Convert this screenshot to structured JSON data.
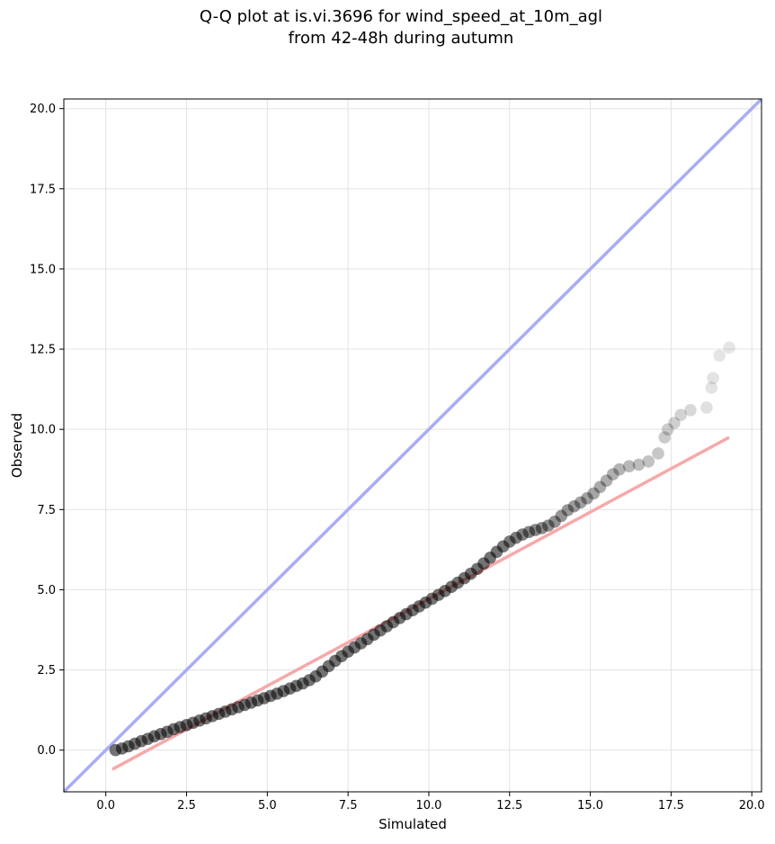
{
  "chart_data": {
    "type": "scatter",
    "title_line1": "Q-Q plot at is.vi.3696 for wind_speed_at_10m_agl",
    "title_line2": "from 42-48h during autumn",
    "xlabel": "Simulated",
    "ylabel": "Observed",
    "xlim": [
      -1.3,
      20.3
    ],
    "ylim": [
      -1.3,
      20.3
    ],
    "x_ticks": [
      0.0,
      2.5,
      5.0,
      7.5,
      10.0,
      12.5,
      15.0,
      17.5,
      20.0
    ],
    "y_ticks": [
      0.0,
      2.5,
      5.0,
      7.5,
      10.0,
      12.5,
      15.0,
      17.5,
      20.0
    ],
    "grid": true,
    "colors": {
      "points": "#000000",
      "identity_line": "#a9acf5",
      "fit_line": "#f6a9a9"
    },
    "identity_line": {
      "x": [
        -1.3,
        20.3
      ],
      "y": [
        -1.3,
        20.3
      ]
    },
    "fit_line": {
      "x": [
        0.2,
        19.3
      ],
      "y": [
        -0.6,
        9.75
      ]
    },
    "series": [
      {
        "points": [
          [
            0.3,
            0.0
          ],
          [
            0.5,
            0.05
          ],
          [
            0.7,
            0.12
          ],
          [
            0.9,
            0.2
          ],
          [
            1.1,
            0.28
          ],
          [
            1.3,
            0.35
          ],
          [
            1.5,
            0.43
          ],
          [
            1.7,
            0.5
          ],
          [
            1.9,
            0.57
          ],
          [
            2.1,
            0.65
          ],
          [
            2.3,
            0.72
          ],
          [
            2.5,
            0.78
          ],
          [
            2.7,
            0.85
          ],
          [
            2.9,
            0.92
          ],
          [
            3.1,
            0.99
          ],
          [
            3.3,
            1.06
          ],
          [
            3.5,
            1.13
          ],
          [
            3.7,
            1.2
          ],
          [
            3.9,
            1.27
          ],
          [
            4.1,
            1.34
          ],
          [
            4.3,
            1.41
          ],
          [
            4.5,
            1.48
          ],
          [
            4.7,
            1.55
          ],
          [
            4.9,
            1.62
          ],
          [
            5.1,
            1.69
          ],
          [
            5.3,
            1.76
          ],
          [
            5.5,
            1.84
          ],
          [
            5.7,
            1.92
          ],
          [
            5.9,
            2.0
          ],
          [
            6.1,
            2.08
          ],
          [
            6.3,
            2.18
          ],
          [
            6.5,
            2.3
          ],
          [
            6.7,
            2.45
          ],
          [
            6.9,
            2.62
          ],
          [
            7.1,
            2.78
          ],
          [
            7.3,
            2.93
          ],
          [
            7.5,
            3.07
          ],
          [
            7.7,
            3.2
          ],
          [
            7.9,
            3.33
          ],
          [
            8.1,
            3.46
          ],
          [
            8.3,
            3.6
          ],
          [
            8.5,
            3.73
          ],
          [
            8.7,
            3.86
          ],
          [
            8.9,
            3.99
          ],
          [
            9.1,
            4.12
          ],
          [
            9.3,
            4.24
          ],
          [
            9.5,
            4.36
          ],
          [
            9.7,
            4.48
          ],
          [
            9.9,
            4.6
          ],
          [
            10.1,
            4.72
          ],
          [
            10.3,
            4.84
          ],
          [
            10.5,
            4.96
          ],
          [
            10.7,
            5.09
          ],
          [
            10.9,
            5.22
          ],
          [
            11.1,
            5.36
          ],
          [
            11.3,
            5.5
          ],
          [
            11.5,
            5.65
          ],
          [
            11.7,
            5.82
          ],
          [
            11.9,
            6.0
          ],
          [
            12.1,
            6.18
          ],
          [
            12.3,
            6.35
          ],
          [
            12.5,
            6.5
          ],
          [
            12.7,
            6.62
          ],
          [
            12.9,
            6.72
          ],
          [
            13.1,
            6.8
          ],
          [
            13.3,
            6.86
          ],
          [
            13.5,
            6.92
          ],
          [
            13.7,
            7.0
          ],
          [
            13.9,
            7.12
          ],
          [
            14.1,
            7.3
          ],
          [
            14.3,
            7.48
          ],
          [
            14.5,
            7.6
          ],
          [
            14.7,
            7.72
          ],
          [
            14.9,
            7.85
          ],
          [
            15.1,
            8.0
          ],
          [
            15.3,
            8.2
          ],
          [
            15.5,
            8.4
          ],
          [
            15.7,
            8.6
          ],
          [
            15.9,
            8.75
          ],
          [
            16.2,
            8.85
          ],
          [
            16.5,
            8.9
          ],
          [
            16.8,
            9.0
          ],
          [
            17.1,
            9.25
          ],
          [
            17.3,
            9.75
          ],
          [
            17.4,
            10.0
          ],
          [
            17.6,
            10.2
          ],
          [
            17.8,
            10.45
          ],
          [
            18.1,
            10.6
          ],
          [
            18.6,
            10.68
          ],
          [
            18.75,
            11.3
          ],
          [
            18.8,
            11.6
          ],
          [
            19.0,
            12.3
          ],
          [
            19.3,
            12.55
          ]
        ]
      }
    ]
  }
}
